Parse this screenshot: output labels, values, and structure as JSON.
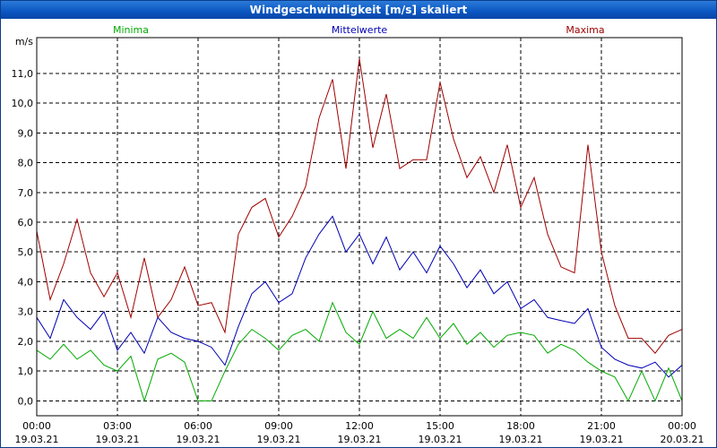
{
  "window": {
    "title": "Windgeschwindigkeit [m/s] skaliert"
  },
  "chart_data": {
    "type": "line",
    "title": "Windgeschwindigkeit [m/s] skaliert",
    "ylabel": "m/s",
    "xlabel": "",
    "ylim": [
      -0.5,
      12.2
    ],
    "xlim": [
      0,
      24
    ],
    "grid": true,
    "y_ticks": [
      "0,0",
      "1,0",
      "2,0",
      "3,0",
      "4,0",
      "5,0",
      "6,0",
      "7,0",
      "8,0",
      "9,0",
      "10,0",
      "11,0"
    ],
    "y_tick_values": [
      0,
      1,
      2,
      3,
      4,
      5,
      6,
      7,
      8,
      9,
      10,
      11
    ],
    "x_ticks": [
      {
        "time": "00:00",
        "date": "19.03.21"
      },
      {
        "time": "03:00",
        "date": "19.03.21"
      },
      {
        "time": "06:00",
        "date": "19.03.21"
      },
      {
        "time": "09:00",
        "date": "19.03.21"
      },
      {
        "time": "12:00",
        "date": "19.03.21"
      },
      {
        "time": "15:00",
        "date": "19.03.21"
      },
      {
        "time": "18:00",
        "date": "19.03.21"
      },
      {
        "time": "21:00",
        "date": "19.03.21"
      },
      {
        "time": "00:00",
        "date": "20.03.21"
      }
    ],
    "x_tick_values": [
      0,
      3,
      6,
      9,
      12,
      15,
      18,
      21,
      24
    ],
    "series": [
      {
        "name": "Maxima",
        "color": "#a00000",
        "x": [
          0,
          0.5,
          1,
          1.5,
          2,
          2.5,
          3,
          3.5,
          4,
          4.5,
          5,
          5.5,
          6,
          6.5,
          7,
          7.5,
          8,
          8.5,
          9,
          9.5,
          10,
          10.5,
          11,
          11.5,
          12,
          12.5,
          13,
          13.5,
          14,
          14.5,
          15,
          15.5,
          16,
          16.5,
          17,
          17.5,
          18,
          18.5,
          19,
          19.5,
          20,
          20.5,
          21,
          21.5,
          22,
          22.5,
          23,
          23.5,
          24
        ],
        "values": [
          5.7,
          3.4,
          4.6,
          6.1,
          4.3,
          3.5,
          4.3,
          2.8,
          4.8,
          2.8,
          3.4,
          4.5,
          3.2,
          3.3,
          2.3,
          5.6,
          6.5,
          6.8,
          5.5,
          6.2,
          7.2,
          9.5,
          10.8,
          7.8,
          11.5,
          8.5,
          10.3,
          7.8,
          8.1,
          8.1,
          10.7,
          8.8,
          7.5,
          8.2,
          7.0,
          8.6,
          6.5,
          7.5,
          5.6,
          4.5,
          4.3,
          8.6,
          5.0,
          3.2,
          2.1,
          2.1,
          1.6,
          2.2,
          2.4
        ]
      },
      {
        "name": "Mittelwerte",
        "color": "#0000b4",
        "x": [
          0,
          0.5,
          1,
          1.5,
          2,
          2.5,
          3,
          3.5,
          4,
          4.5,
          5,
          5.5,
          6,
          6.5,
          7,
          7.5,
          8,
          8.5,
          9,
          9.5,
          10,
          10.5,
          11,
          11.5,
          12,
          12.5,
          13,
          13.5,
          14,
          14.5,
          15,
          15.5,
          16,
          16.5,
          17,
          17.5,
          18,
          18.5,
          19,
          19.5,
          20,
          20.5,
          21,
          21.5,
          22,
          22.5,
          23,
          23.5,
          24
        ],
        "values": [
          2.8,
          2.1,
          3.4,
          2.8,
          2.4,
          3.0,
          1.7,
          2.3,
          1.6,
          2.8,
          2.3,
          2.1,
          2.0,
          1.8,
          1.2,
          2.5,
          3.6,
          4.0,
          3.3,
          3.6,
          4.8,
          5.6,
          6.2,
          5.0,
          5.6,
          4.6,
          5.5,
          4.4,
          5.0,
          4.3,
          5.2,
          4.6,
          3.8,
          4.4,
          3.6,
          4.0,
          3.1,
          3.4,
          2.8,
          2.7,
          2.6,
          3.1,
          1.8,
          1.4,
          1.2,
          1.1,
          1.3,
          0.8,
          1.2
        ]
      },
      {
        "name": "Minima",
        "color": "#00aa00",
        "x": [
          0,
          0.5,
          1,
          1.5,
          2,
          2.5,
          3,
          3.5,
          4,
          4.5,
          5,
          5.5,
          6,
          6.5,
          7,
          7.5,
          8,
          8.5,
          9,
          9.5,
          10,
          10.5,
          11,
          11.5,
          12,
          12.5,
          13,
          13.5,
          14,
          14.5,
          15,
          15.5,
          16,
          16.5,
          17,
          17.5,
          18,
          18.5,
          19,
          19.5,
          20,
          20.5,
          21,
          21.5,
          22,
          22.5,
          23,
          23.5,
          24
        ],
        "values": [
          1.7,
          1.4,
          1.9,
          1.4,
          1.7,
          1.2,
          1.0,
          1.5,
          0.0,
          1.4,
          1.6,
          1.3,
          0.0,
          0.0,
          1.0,
          1.9,
          2.4,
          2.1,
          1.7,
          2.2,
          2.4,
          2.0,
          3.3,
          2.3,
          1.9,
          3.0,
          2.1,
          2.4,
          2.1,
          2.8,
          2.1,
          2.6,
          1.9,
          2.3,
          1.8,
          2.2,
          2.3,
          2.2,
          1.6,
          1.9,
          1.7,
          1.3,
          1.0,
          0.8,
          0.0,
          1.0,
          0.0,
          1.1,
          0.0
        ]
      }
    ]
  }
}
